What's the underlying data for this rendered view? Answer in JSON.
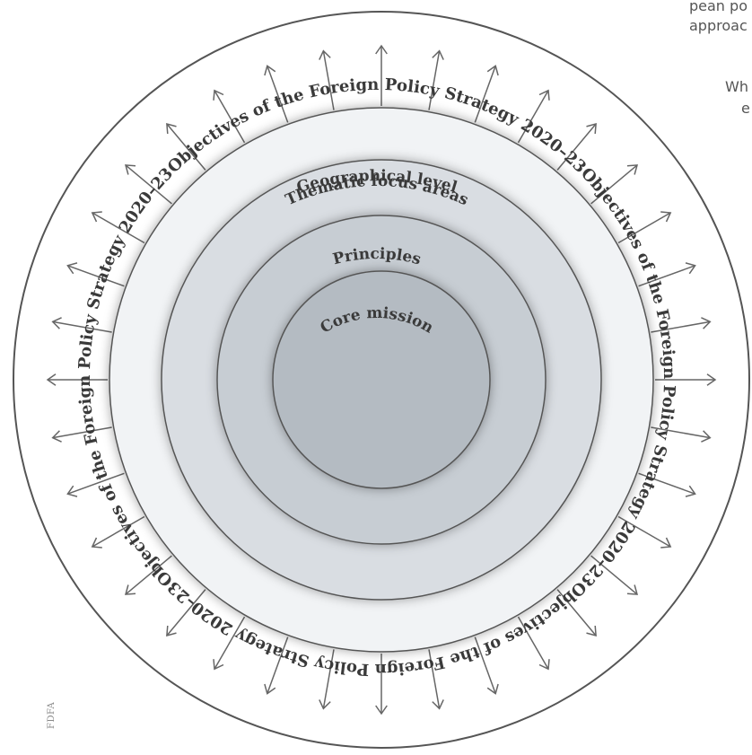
{
  "diagram": {
    "outer_ring_text": "Objectives of the Foreign Policy Strategy 2020–23",
    "rings": [
      {
        "label": "Geographical level"
      },
      {
        "label": "Thematic focus areas"
      },
      {
        "label": "Principles"
      },
      {
        "label": "Core mission"
      }
    ],
    "source": "FDFA",
    "colors": {
      "outer_ring_stroke": "#555555",
      "ring_fill_1": "#f1f3f5",
      "ring_fill_2": "#d9dde2",
      "ring_fill_3": "#c7cdd3",
      "ring_fill_4": "#b4bbc2",
      "arrow": "#666666"
    }
  },
  "side_text": {
    "line1": "pean po",
    "line2": "approac",
    "line3": "Wh",
    "line4": "e"
  }
}
